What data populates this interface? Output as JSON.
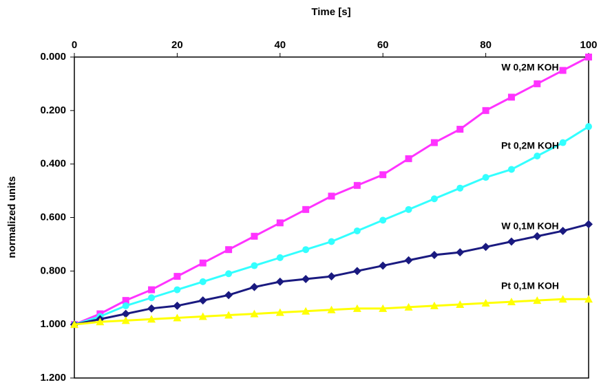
{
  "chart_data": {
    "type": "line",
    "x_label": "Time [s]",
    "y_label": "normalized units",
    "x": [
      0,
      5,
      10,
      15,
      20,
      25,
      30,
      35,
      40,
      45,
      50,
      55,
      60,
      65,
      70,
      75,
      80,
      85,
      90,
      95,
      100
    ],
    "xlim": [
      0,
      100
    ],
    "xticks": [
      0,
      20,
      40,
      60,
      80,
      100
    ],
    "x_axis_position": "top",
    "ylim": [
      0,
      1.2
    ],
    "y_inverted": true,
    "yticks": [
      {
        "value": 0,
        "label": "0.000"
      },
      {
        "value": 0.2,
        "label": "0.200"
      },
      {
        "value": 0.4,
        "label": "0.400"
      },
      {
        "value": 0.6,
        "label": "0.600"
      },
      {
        "value": 0.8,
        "label": "0.800"
      },
      {
        "value": 1.0,
        "label": "1.000"
      },
      {
        "value": 1.2,
        "label": "1.200"
      }
    ],
    "grid": false,
    "series": [
      {
        "name": "W 0,2M KOH",
        "color": "#ff33ff",
        "marker": "square",
        "values": [
          1.0,
          0.96,
          0.91,
          0.87,
          0.82,
          0.77,
          0.72,
          0.67,
          0.62,
          0.57,
          0.52,
          0.48,
          0.44,
          0.38,
          0.32,
          0.27,
          0.2,
          0.15,
          0.1,
          0.05,
          0.0
        ]
      },
      {
        "name": "Pt 0,2M KOH",
        "color": "#33ffff",
        "marker": "circle",
        "values": [
          1.0,
          0.97,
          0.93,
          0.9,
          0.87,
          0.84,
          0.81,
          0.78,
          0.75,
          0.72,
          0.69,
          0.65,
          0.61,
          0.57,
          0.53,
          0.49,
          0.45,
          0.42,
          0.37,
          0.32,
          0.26
        ]
      },
      {
        "name": "W 0,1M KOH",
        "color": "#1a1a80",
        "marker": "diamond",
        "values": [
          1.0,
          0.98,
          0.96,
          0.94,
          0.93,
          0.91,
          0.89,
          0.86,
          0.84,
          0.83,
          0.82,
          0.8,
          0.78,
          0.76,
          0.74,
          0.73,
          0.71,
          0.69,
          0.67,
          0.65,
          0.625
        ]
      },
      {
        "name": "Pt 0,1M KOH",
        "color": "#ffff00",
        "marker": "triangle",
        "values": [
          1.0,
          0.99,
          0.985,
          0.98,
          0.975,
          0.97,
          0.965,
          0.96,
          0.955,
          0.95,
          0.945,
          0.94,
          0.94,
          0.935,
          0.93,
          0.925,
          0.92,
          0.915,
          0.91,
          0.905,
          0.905
        ]
      }
    ]
  }
}
